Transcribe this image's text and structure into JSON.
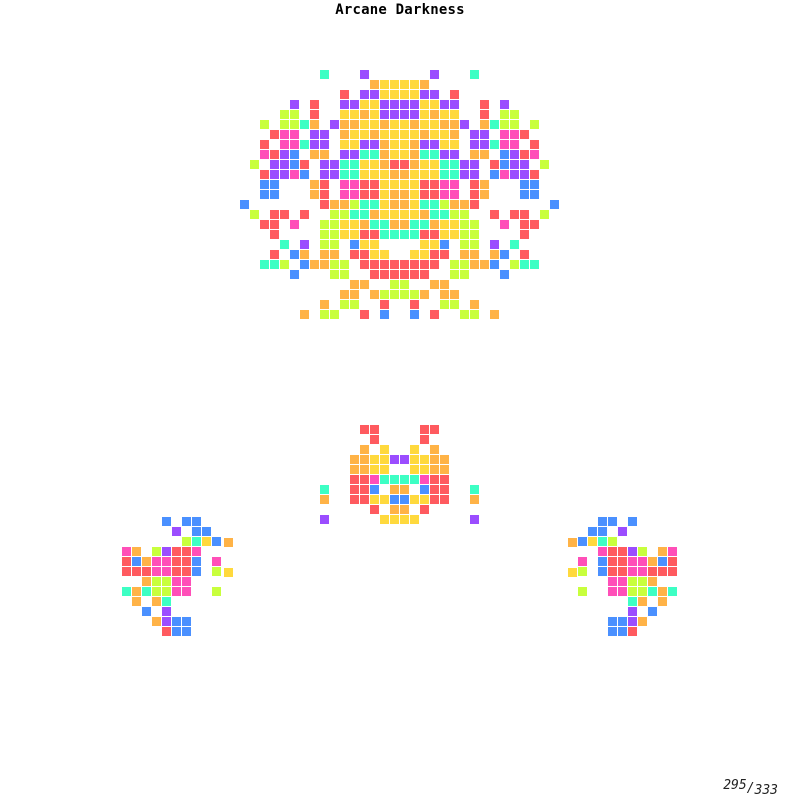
{
  "title": "Arcane Darkness",
  "counter": {
    "current": "295",
    "total": "333"
  },
  "palette": {
    "red": "#ff5a5f",
    "pink": "#ff4fb8",
    "purple": "#9b4dff",
    "blue": "#4a90ff",
    "teal": "#3dffc4",
    "lime": "#c8ff3d",
    "yellow": "#ffd93d",
    "orange": "#ffb347"
  }
}
